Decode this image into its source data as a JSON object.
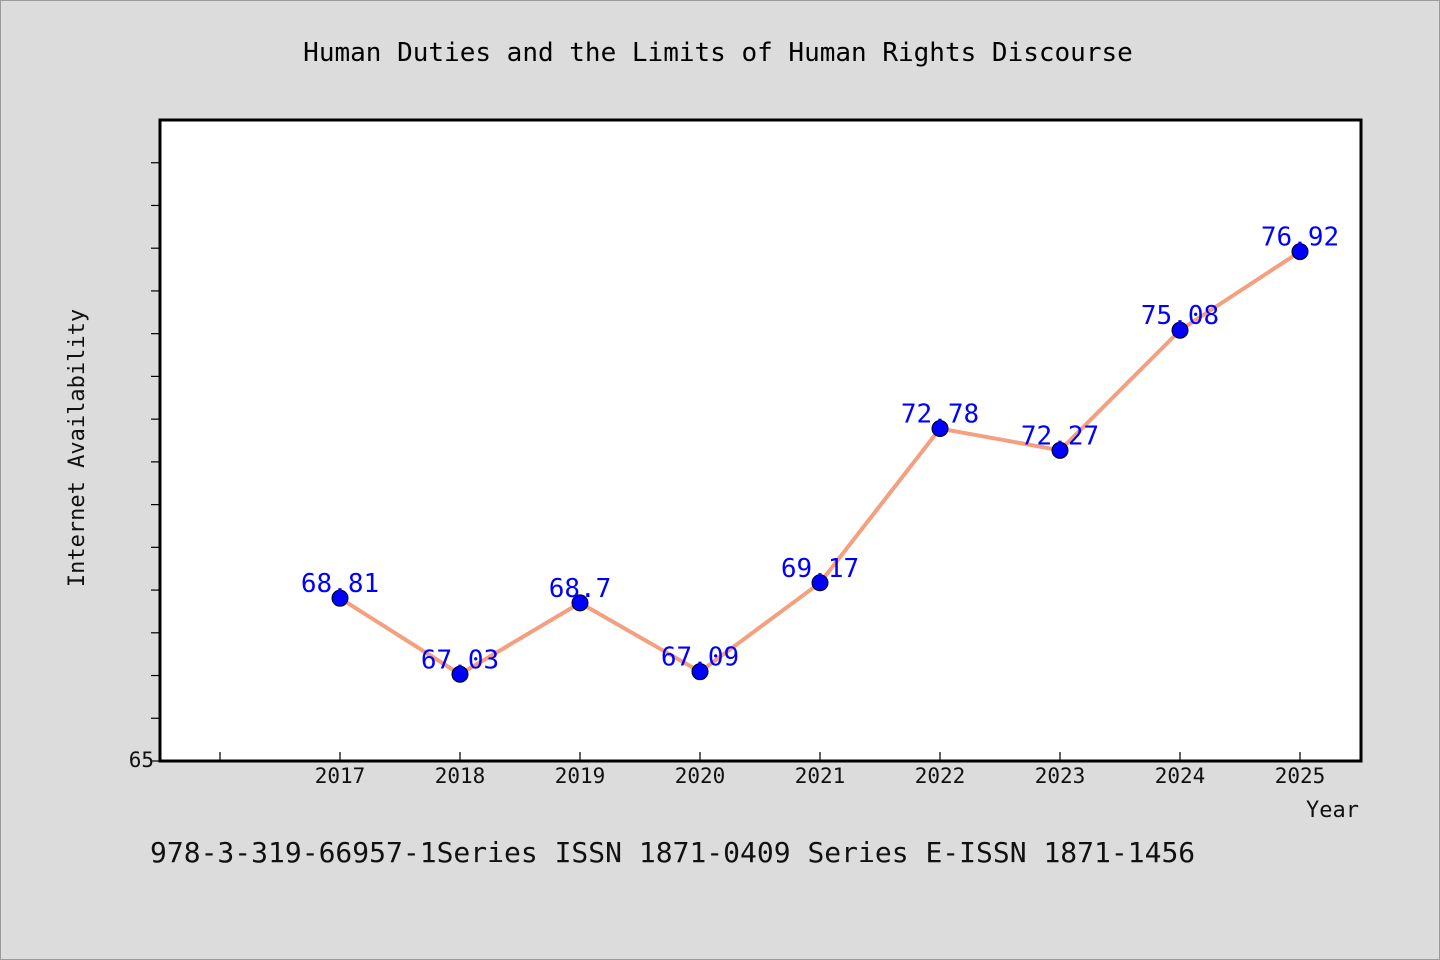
{
  "chart_data": {
    "type": "line",
    "title": "Human Duties and the Limits of Human Rights Discourse",
    "xlabel": "Year",
    "ylabel": "Internet Availability",
    "categories": [
      "2017",
      "2018",
      "2019",
      "2020",
      "2021",
      "2022",
      "2023",
      "2024",
      "2025"
    ],
    "series": [
      {
        "values": [
          68.81,
          67.03,
          68.7,
          67.09,
          69.17,
          72.78,
          72.27,
          75.08,
          76.92
        ],
        "labels": [
          "68.81",
          "67.03",
          "68.7",
          "67.09",
          "69.17",
          "72.78",
          "72.27",
          "75.08",
          "76.92"
        ],
        "line_color": "#f4a07e",
        "marker_color": "#0000ff"
      }
    ],
    "ylim": [
      65,
      80
    ],
    "y_tick_labels": [
      "65"
    ],
    "grid": false,
    "legend": "none"
  },
  "footer_text": "978-3-319-66957-1Series ISSN 1871-0409 Series E-ISSN 1871-1456"
}
